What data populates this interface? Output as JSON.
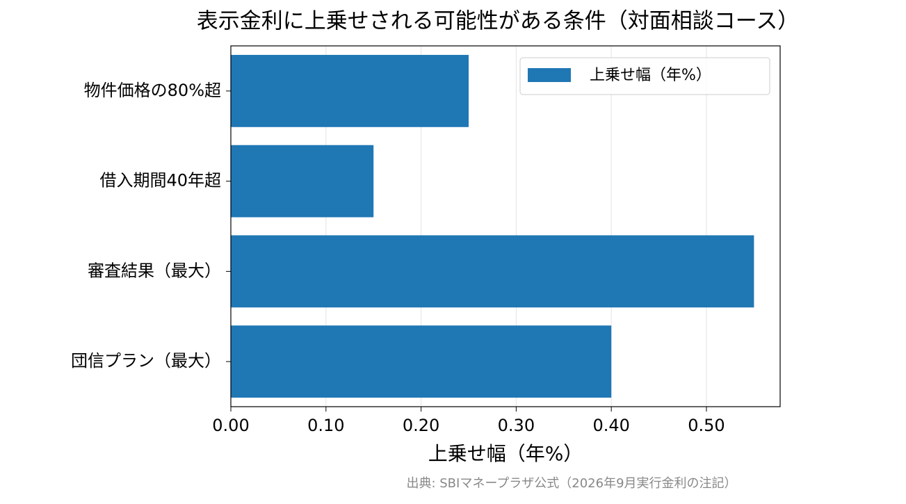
{
  "chart_data": {
    "type": "barh",
    "title": "表示金利に上乗せされる可能性がある条件（対面相談コース）",
    "categories": [
      "物件価格の80%超",
      "借入期間40年超",
      "審査結果（最大）",
      "団信プラン（最大）"
    ],
    "series": [
      {
        "name": "上乗せ幅（年%）",
        "color": "#1f77b4",
        "values": [
          0.25,
          0.15,
          0.55,
          0.4
        ]
      }
    ],
    "xlabel": "上乗せ幅（年%）",
    "xlim": [
      0,
      0.5775
    ],
    "xticks": [
      {
        "value": 0,
        "label": "0.00"
      },
      {
        "value": 0.1,
        "label": "0.10"
      },
      {
        "value": 0.2,
        "label": "0.20"
      },
      {
        "value": 0.3,
        "label": "0.30"
      },
      {
        "value": 0.4,
        "label": "0.40"
      },
      {
        "value": 0.5,
        "label": "0.50"
      }
    ],
    "grid": true,
    "legend": "upper right",
    "source": "出典: SBIマネープラザ公式（2026年9月実行金利の注記）"
  }
}
